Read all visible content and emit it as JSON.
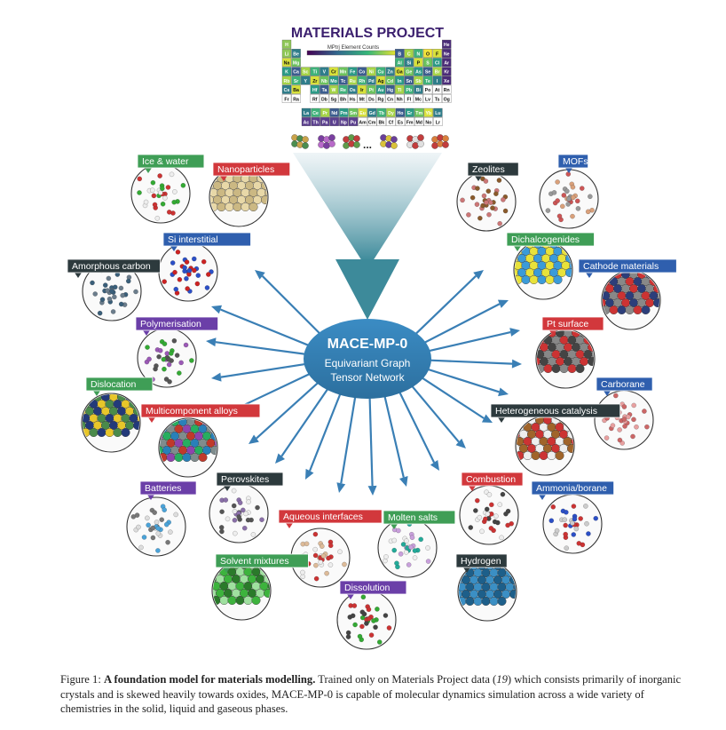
{
  "title": "MATERIALS PROJECT",
  "colorbar_title": "MPtrj Element Counts",
  "periodic_table": {
    "rows": [
      [
        "H",
        "",
        "",
        "",
        "",
        "",
        "",
        "",
        "",
        "",
        "",
        "",
        "",
        "",
        "",
        "",
        "",
        "He"
      ],
      [
        "Li",
        "Be",
        "",
        "",
        "",
        "",
        "",
        "",
        "",
        "",
        "",
        "",
        "B",
        "C",
        "N",
        "O",
        "F",
        "Ne"
      ],
      [
        "Na",
        "Mg",
        "",
        "",
        "",
        "",
        "",
        "",
        "",
        "",
        "",
        "",
        "Al",
        "Si",
        "P",
        "S",
        "Cl",
        "Ar"
      ],
      [
        "K",
        "Ca",
        "Sc",
        "Ti",
        "V",
        "Cr",
        "Mn",
        "Fe",
        "Co",
        "Ni",
        "Cu",
        "Zn",
        "Ga",
        "Ge",
        "As",
        "Se",
        "Br",
        "Kr"
      ],
      [
        "Rb",
        "Sr",
        "Y",
        "Zr",
        "Nb",
        "Mo",
        "Tc",
        "Ru",
        "Rh",
        "Pd",
        "Ag",
        "Cd",
        "In",
        "Sn",
        "Sb",
        "Te",
        "I",
        "Xe"
      ],
      [
        "Cs",
        "Ba",
        "",
        "Hf",
        "Ta",
        "W",
        "Re",
        "Os",
        "Ir",
        "Pt",
        "Au",
        "Hg",
        "Tl",
        "Pb",
        "Bi",
        "Po",
        "At",
        "Rn"
      ],
      [
        "Fr",
        "Ra",
        "",
        "Rf",
        "Db",
        "Sg",
        "Bh",
        "Hs",
        "Mt",
        "Ds",
        "Rg",
        "Cn",
        "Nh",
        "Fl",
        "Mc",
        "Lv",
        "Ts",
        "Og"
      ]
    ],
    "f_rows": [
      [
        "La",
        "Ce",
        "Pr",
        "Nd",
        "Pm",
        "Sm",
        "Eu",
        "Gd",
        "Tb",
        "Dy",
        "Ho",
        "Er",
        "Tm",
        "Yb",
        "Lu"
      ],
      [
        "Ac",
        "Th",
        "Pa",
        "U",
        "Np",
        "Pu",
        "Am",
        "Cm",
        "Bk",
        "Cf",
        "Es",
        "Fm",
        "Md",
        "No",
        "Lr"
      ]
    ]
  },
  "ellipsis": "...",
  "center": {
    "name": "MACE-MP-0",
    "line1": "Equivariant Graph",
    "line2": "Tensor Network"
  },
  "label_colors": {
    "green": "#3f9e56",
    "red": "#d2383c",
    "blue": "#2f5fae",
    "purple": "#6b3fa8",
    "dark": "#2d3a3d"
  },
  "items": [
    {
      "id": "ice",
      "label": "Ice & water",
      "color": "green",
      "icon": "ice-water-icon"
    },
    {
      "id": "nano",
      "label": "Nanoparticles",
      "color": "red",
      "icon": "nanoparticle-icon"
    },
    {
      "id": "si",
      "label": "Si interstitial",
      "color": "blue",
      "icon": "si-interstitial-icon"
    },
    {
      "id": "amorph",
      "label": "Amorphous carbon",
      "color": "dark",
      "icon": "amorphous-carbon-icon"
    },
    {
      "id": "poly",
      "label": "Polymerisation",
      "color": "purple",
      "icon": "polymer-icon"
    },
    {
      "id": "disl",
      "label": "Dislocation",
      "color": "green",
      "icon": "dislocation-icon"
    },
    {
      "id": "alloy",
      "label": "Multicomponent alloys",
      "color": "red",
      "icon": "alloy-icon"
    },
    {
      "id": "batt",
      "label": "Batteries",
      "color": "purple",
      "icon": "battery-icon"
    },
    {
      "id": "perov",
      "label": "Perovskites",
      "color": "dark",
      "icon": "perovskite-icon"
    },
    {
      "id": "aqueous",
      "label": "Aqueous interfaces",
      "color": "red",
      "icon": "aqueous-interface-icon"
    },
    {
      "id": "molten",
      "label": "Molten salts",
      "color": "green",
      "icon": "molten-salt-icon"
    },
    {
      "id": "solvent",
      "label": "Solvent mixtures",
      "color": "green",
      "icon": "solvent-icon"
    },
    {
      "id": "dissol",
      "label": "Dissolution",
      "color": "purple",
      "icon": "dissolution-icon"
    },
    {
      "id": "zeol",
      "label": "Zeolites",
      "color": "dark",
      "icon": "zeolite-icon"
    },
    {
      "id": "mofs",
      "label": "MOFs",
      "color": "blue",
      "icon": "mof-icon"
    },
    {
      "id": "dichal",
      "label": "Dichalcogenides",
      "color": "green",
      "icon": "dichalcogenide-icon"
    },
    {
      "id": "cathode",
      "label": "Cathode materials",
      "color": "blue",
      "icon": "cathode-icon"
    },
    {
      "id": "pt",
      "label": "Pt surface",
      "color": "red",
      "icon": "pt-surface-icon"
    },
    {
      "id": "carb",
      "label": "Carborane",
      "color": "blue",
      "icon": "carborane-icon"
    },
    {
      "id": "hetero",
      "label": "Heterogeneous catalysis",
      "color": "dark",
      "icon": "catalysis-icon"
    },
    {
      "id": "comb",
      "label": "Combustion",
      "color": "red",
      "icon": "combustion-icon"
    },
    {
      "id": "ammonia",
      "label": "Ammonia/borane",
      "color": "blue",
      "icon": "ammonia-borane-icon"
    },
    {
      "id": "hydro",
      "label": "Hydrogen",
      "color": "dark",
      "icon": "hydrogen-icon"
    }
  ],
  "caption": {
    "label": "Figure 1:",
    "bold": "A foundation model for materials modelling.",
    "text1": "Trained only on Materials Project data (",
    "ref": "19",
    "text2": ") which consists primarily of inorganic crystals and is skewed heavily towards oxides, MACE-MP-0 is capable of molecular dynamics simulation across a wide variety of chemistries in the solid, liquid and gaseous phases."
  }
}
